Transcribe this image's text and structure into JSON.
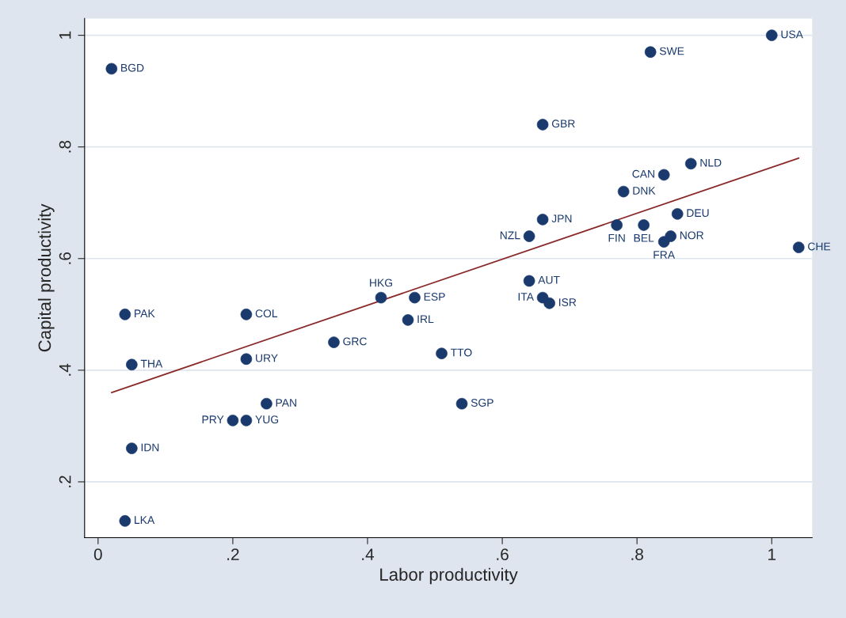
{
  "chart_data": {
    "type": "scatter",
    "xlabel": "Labor productivity",
    "ylabel": "Capital productivity",
    "xlim": [
      -0.02,
      1.06
    ],
    "ylim": [
      0.1,
      1.03
    ],
    "xticks": [
      0,
      {
        "value": 0.2,
        "label": ".2"
      },
      {
        "value": 0.4,
        "label": ".4"
      },
      {
        "value": 0.6,
        "label": ".6"
      },
      {
        "value": 0.8,
        "label": ".8"
      },
      1
    ],
    "yticks": [
      {
        "value": 0.2,
        "label": ".2"
      },
      {
        "value": 0.4,
        "label": ".4"
      },
      {
        "value": 0.6,
        "label": ".6"
      },
      {
        "value": 0.8,
        "label": ".8"
      },
      1
    ],
    "grid": "y",
    "marker": "circle",
    "series": [
      {
        "color": "#1a3a6e",
        "x": [
          0.02,
          1.0,
          0.82,
          0.66,
          0.88,
          0.84,
          0.78,
          0.86,
          0.66,
          0.77,
          0.81,
          0.64,
          0.85,
          0.84,
          1.04,
          0.64,
          0.42,
          0.47,
          0.66,
          0.67,
          0.04,
          0.22,
          0.46,
          0.35,
          0.51,
          0.22,
          0.05,
          0.25,
          0.54,
          0.2,
          0.22,
          0.05,
          0.04
        ],
        "values": [
          0.94,
          1.0,
          0.97,
          0.84,
          0.77,
          0.75,
          0.72,
          0.68,
          0.67,
          0.66,
          0.66,
          0.64,
          0.64,
          0.63,
          0.62,
          0.56,
          0.53,
          0.53,
          0.53,
          0.52,
          0.5,
          0.5,
          0.49,
          0.45,
          0.43,
          0.42,
          0.41,
          0.34,
          0.34,
          0.31,
          0.31,
          0.26,
          0.13
        ]
      },
      {
        "type": "line",
        "color": "#8b2a2a",
        "marker": "none",
        "x": [
          0.02,
          1.04
        ],
        "values": [
          0.36,
          0.78
        ]
      }
    ],
    "annotations": [
      {
        "text": "BGD",
        "x": 0.02,
        "y": 0.94
      },
      {
        "text": "USA",
        "x": 1.0,
        "y": 1.0
      },
      {
        "text": "SWE",
        "x": 0.82,
        "y": 0.97
      },
      {
        "text": "GBR",
        "x": 0.66,
        "y": 0.84
      },
      {
        "text": "NLD",
        "x": 0.88,
        "y": 0.77
      },
      {
        "text": "CAN",
        "x": 0.84,
        "y": 0.75
      },
      {
        "text": "DNK",
        "x": 0.78,
        "y": 0.72
      },
      {
        "text": "DEU",
        "x": 0.86,
        "y": 0.68
      },
      {
        "text": "JPN",
        "x": 0.66,
        "y": 0.67
      },
      {
        "text": "FIN",
        "x": 0.77,
        "y": 0.66
      },
      {
        "text": "BEL",
        "x": 0.81,
        "y": 0.66
      },
      {
        "text": "NZL",
        "x": 0.64,
        "y": 0.64
      },
      {
        "text": "NOR",
        "x": 0.85,
        "y": 0.64
      },
      {
        "text": "FRA",
        "x": 0.84,
        "y": 0.63
      },
      {
        "text": "CHE",
        "x": 1.04,
        "y": 0.62
      },
      {
        "text": "AUT",
        "x": 0.64,
        "y": 0.56
      },
      {
        "text": "HKG",
        "x": 0.42,
        "y": 0.53
      },
      {
        "text": "ESP",
        "x": 0.47,
        "y": 0.53
      },
      {
        "text": "ITA",
        "x": 0.66,
        "y": 0.53
      },
      {
        "text": "ISR",
        "x": 0.67,
        "y": 0.52
      },
      {
        "text": "PAK",
        "x": 0.04,
        "y": 0.5
      },
      {
        "text": "COL",
        "x": 0.22,
        "y": 0.5
      },
      {
        "text": "IRL",
        "x": 0.46,
        "y": 0.49
      },
      {
        "text": "GRC",
        "x": 0.35,
        "y": 0.45
      },
      {
        "text": "TTO",
        "x": 0.51,
        "y": 0.43
      },
      {
        "text": "URY",
        "x": 0.22,
        "y": 0.42
      },
      {
        "text": "THA",
        "x": 0.05,
        "y": 0.41
      },
      {
        "text": "PAN",
        "x": 0.25,
        "y": 0.34
      },
      {
        "text": "SGP",
        "x": 0.54,
        "y": 0.34
      },
      {
        "text": "PRY",
        "x": 0.2,
        "y": 0.31
      },
      {
        "text": "YUG",
        "x": 0.22,
        "y": 0.31
      },
      {
        "text": "IDN",
        "x": 0.05,
        "y": 0.26
      },
      {
        "text": "LKA",
        "x": 0.04,
        "y": 0.13
      }
    ]
  }
}
